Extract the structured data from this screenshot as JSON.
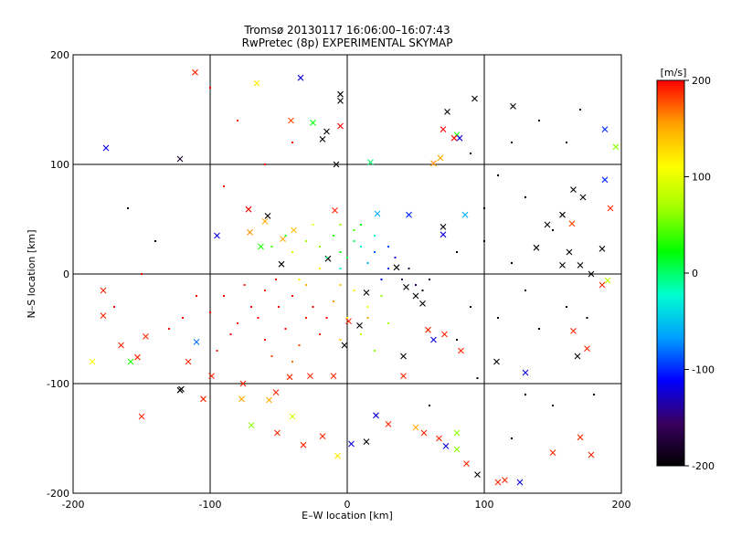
{
  "chart_data": {
    "type": "scatter",
    "title": "Tromsø 20130117 16:06:00–16:07:43",
    "subtitle": "RwPretec (8p) EXPERIMENTAL SKYMAP",
    "xlabel": "E–W location [km]",
    "ylabel": "N–S location [km]",
    "xlim": [
      -200,
      200
    ],
    "ylim": [
      -200,
      200
    ],
    "xticks": [
      -200,
      -100,
      0,
      100,
      200
    ],
    "yticks": [
      -200,
      -100,
      0,
      100,
      200
    ],
    "grid": true,
    "colorbar": {
      "label": "[m/s]",
      "min": -200,
      "max": 200,
      "ticks": [
        200,
        100,
        0,
        -100,
        -200
      ],
      "position": "right",
      "stops": [
        "#000000",
        "#3a0060",
        "#0000ff",
        "#00a0ff",
        "#00ffd0",
        "#00ff00",
        "#a0ff00",
        "#ffff00",
        "#ffa000",
        "#ff0000"
      ]
    },
    "series": [
      {
        "marker": "x",
        "points": [
          [
            -111,
            184,
            190
          ],
          [
            -66,
            174,
            120
          ],
          [
            -34,
            179,
            -120
          ],
          [
            -5,
            164,
            -200
          ],
          [
            -5,
            158,
            -200
          ],
          [
            -41,
            140,
            180
          ],
          [
            -25,
            138,
            20
          ],
          [
            -5,
            135,
            200
          ],
          [
            -15,
            130,
            -200
          ],
          [
            -18,
            123,
            -200
          ],
          [
            -176,
            115,
            -120
          ],
          [
            -122,
            105,
            -180
          ],
          [
            -8,
            100,
            -200
          ],
          [
            17,
            102,
            0
          ],
          [
            68,
            106,
            150
          ],
          [
            70,
            132,
            200
          ],
          [
            80,
            127,
            30
          ],
          [
            82,
            124,
            -120
          ],
          [
            73,
            148,
            -200
          ],
          [
            93,
            160,
            -200
          ],
          [
            121,
            153,
            -200
          ],
          [
            188,
            132,
            -100
          ],
          [
            196,
            116,
            60
          ],
          [
            63,
            101,
            160
          ],
          [
            78,
            124,
            200
          ],
          [
            165,
            77,
            -200
          ],
          [
            172,
            70,
            -200
          ],
          [
            188,
            86,
            -100
          ],
          [
            192,
            60,
            190
          ],
          [
            157,
            54,
            -200
          ],
          [
            146,
            45,
            -200
          ],
          [
            164,
            46,
            180
          ],
          [
            186,
            23,
            -200
          ],
          [
            162,
            20,
            -200
          ],
          [
            157,
            8,
            -200
          ],
          [
            170,
            8,
            -200
          ],
          [
            178,
            0,
            -200
          ],
          [
            190,
            -6,
            80
          ],
          [
            138,
            24,
            -200
          ],
          [
            186,
            -10,
            190
          ],
          [
            -58,
            53,
            -200
          ],
          [
            -72,
            59,
            200
          ],
          [
            -60,
            48,
            150
          ],
          [
            -71,
            38,
            160
          ],
          [
            -39,
            40,
            140
          ],
          [
            -95,
            35,
            -120
          ],
          [
            -47,
            32,
            150
          ],
          [
            -48,
            9,
            -200
          ],
          [
            -14,
            14,
            -200
          ],
          [
            -63,
            25,
            30
          ],
          [
            -9,
            58,
            190
          ],
          [
            22,
            55,
            -60
          ],
          [
            45,
            54,
            -100
          ],
          [
            70,
            43,
            -200
          ],
          [
            86,
            54,
            -60
          ],
          [
            70,
            36,
            -120
          ],
          [
            -150,
            -130,
            190
          ],
          [
            -158,
            -80,
            30
          ],
          [
            -165,
            -65,
            190
          ],
          [
            -186,
            -80,
            110
          ],
          [
            -178,
            -38,
            190
          ],
          [
            -147,
            -57,
            190
          ],
          [
            -153,
            -76,
            190
          ],
          [
            -178,
            -15,
            190
          ],
          [
            -110,
            -62,
            -80
          ],
          [
            -116,
            -80,
            190
          ],
          [
            -121,
            -105,
            -200
          ],
          [
            -122,
            -106,
            -200
          ],
          [
            -105,
            -114,
            190
          ],
          [
            -77,
            -114,
            150
          ],
          [
            -52,
            -108,
            190
          ],
          [
            -57,
            -115,
            150
          ],
          [
            -51,
            -145,
            190
          ],
          [
            -32,
            -156,
            190
          ],
          [
            -18,
            -148,
            190
          ],
          [
            -7,
            -166,
            120
          ],
          [
            -70,
            -138,
            60
          ],
          [
            -40,
            -130,
            90
          ],
          [
            -99,
            -93,
            190
          ],
          [
            -76,
            -100,
            190
          ],
          [
            -42,
            -94,
            190
          ],
          [
            -27,
            -93,
            190
          ],
          [
            -10,
            -93,
            190
          ],
          [
            3,
            -155,
            -120
          ],
          [
            14,
            -153,
            -200
          ],
          [
            21,
            -129,
            -120
          ],
          [
            30,
            -137,
            190
          ],
          [
            50,
            -140,
            150
          ],
          [
            56,
            -145,
            190
          ],
          [
            67,
            -150,
            190
          ],
          [
            72,
            -157,
            -120
          ],
          [
            80,
            -145,
            60
          ],
          [
            80,
            -160,
            60
          ],
          [
            87,
            -173,
            190
          ],
          [
            95,
            -183,
            -200
          ],
          [
            110,
            -190,
            190
          ],
          [
            126,
            -190,
            -120
          ],
          [
            150,
            -163,
            190
          ],
          [
            178,
            -165,
            190
          ],
          [
            170,
            -149,
            190
          ],
          [
            115,
            -188,
            190
          ],
          [
            175,
            -68,
            190
          ],
          [
            168,
            -75,
            -200
          ],
          [
            165,
            -52,
            190
          ],
          [
            130,
            -90,
            -120
          ],
          [
            63,
            -60,
            -120
          ],
          [
            71,
            -55,
            190
          ],
          [
            83,
            -70,
            190
          ],
          [
            109,
            -80,
            -200
          ],
          [
            59,
            -51,
            190
          ],
          [
            50,
            -20,
            -200
          ],
          [
            43,
            -12,
            -200
          ],
          [
            36,
            6,
            -200
          ],
          [
            9,
            -47,
            -200
          ],
          [
            1,
            -43,
            190
          ],
          [
            -2,
            -65,
            -200
          ],
          [
            14,
            -17,
            -200
          ],
          [
            55,
            -27,
            -200
          ],
          [
            41,
            -75,
            -200
          ],
          [
            41,
            -93,
            190
          ]
        ]
      },
      {
        "marker": "dot",
        "points": [
          [
            -52,
            -5,
            200
          ],
          [
            -60,
            -15,
            190
          ],
          [
            -50,
            -30,
            200
          ],
          [
            -40,
            -20,
            200
          ],
          [
            -30,
            -40,
            190
          ],
          [
            -70,
            -30,
            200
          ],
          [
            -80,
            -45,
            200
          ],
          [
            -45,
            -50,
            200
          ],
          [
            -35,
            -65,
            180
          ],
          [
            -20,
            -55,
            190
          ],
          [
            -25,
            -30,
            200
          ],
          [
            -15,
            -40,
            200
          ],
          [
            -60,
            -60,
            200
          ],
          [
            -90,
            -20,
            200
          ],
          [
            -75,
            -10,
            190
          ],
          [
            -100,
            -35,
            200
          ],
          [
            -55,
            -75,
            180
          ],
          [
            -40,
            -80,
            170
          ],
          [
            -10,
            -25,
            160
          ],
          [
            -5,
            -60,
            140
          ],
          [
            -65,
            -40,
            200
          ],
          [
            -85,
            -55,
            200
          ],
          [
            -95,
            -70,
            190
          ],
          [
            -110,
            -20,
            200
          ],
          [
            -120,
            -40,
            200
          ],
          [
            -30,
            -10,
            150
          ],
          [
            0,
            -40,
            120
          ],
          [
            10,
            -55,
            80
          ],
          [
            20,
            -70,
            60
          ],
          [
            30,
            -45,
            70
          ],
          [
            15,
            -30,
            110
          ],
          [
            25,
            -20,
            60
          ],
          [
            -5,
            20,
            20
          ],
          [
            5,
            30,
            0
          ],
          [
            0,
            15,
            10
          ],
          [
            10,
            25,
            -30
          ],
          [
            -10,
            35,
            30
          ],
          [
            -20,
            25,
            60
          ],
          [
            -30,
            30,
            70
          ],
          [
            -40,
            20,
            90
          ],
          [
            -55,
            25,
            40
          ],
          [
            -45,
            35,
            30
          ],
          [
            -25,
            45,
            100
          ],
          [
            -5,
            45,
            60
          ],
          [
            5,
            40,
            40
          ],
          [
            -15,
            15,
            0
          ],
          [
            -5,
            5,
            -20
          ],
          [
            15,
            10,
            -60
          ],
          [
            20,
            20,
            -80
          ],
          [
            30,
            5,
            -100
          ],
          [
            25,
            -5,
            -110
          ],
          [
            40,
            -5,
            -150
          ],
          [
            50,
            -10,
            -160
          ],
          [
            55,
            -15,
            -200
          ],
          [
            60,
            -5,
            -180
          ],
          [
            45,
            5,
            -170
          ],
          [
            35,
            15,
            -120
          ],
          [
            30,
            25,
            -90
          ],
          [
            20,
            35,
            -20
          ],
          [
            10,
            45,
            20
          ],
          [
            -35,
            -5,
            120
          ],
          [
            -20,
            5,
            110
          ],
          [
            -5,
            -10,
            140
          ],
          [
            5,
            -15,
            120
          ],
          [
            15,
            -40,
            150
          ],
          [
            80,
            20,
            -200
          ],
          [
            100,
            30,
            -200
          ],
          [
            120,
            10,
            -200
          ],
          [
            130,
            -15,
            -200
          ],
          [
            110,
            -40,
            -200
          ],
          [
            90,
            -30,
            -200
          ],
          [
            140,
            -50,
            -200
          ],
          [
            160,
            -30,
            -200
          ],
          [
            175,
            -40,
            -200
          ],
          [
            150,
            40,
            -200
          ],
          [
            130,
            70,
            -200
          ],
          [
            110,
            90,
            -200
          ],
          [
            120,
            120,
            -200
          ],
          [
            140,
            140,
            -200
          ],
          [
            160,
            120,
            -200
          ],
          [
            170,
            150,
            -200
          ],
          [
            90,
            110,
            -200
          ],
          [
            100,
            60,
            -200
          ],
          [
            80,
            -60,
            -200
          ],
          [
            95,
            -95,
            -200
          ],
          [
            130,
            -110,
            -200
          ],
          [
            150,
            -120,
            -200
          ],
          [
            180,
            -110,
            -200
          ],
          [
            120,
            -150,
            -200
          ],
          [
            60,
            -120,
            -200
          ],
          [
            -150,
            0,
            200
          ],
          [
            -170,
            -30,
            200
          ],
          [
            -130,
            -50,
            200
          ],
          [
            -140,
            30,
            -200
          ],
          [
            -160,
            60,
            -200
          ],
          [
            -90,
            80,
            200
          ],
          [
            -60,
            100,
            200
          ],
          [
            -40,
            120,
            200
          ],
          [
            -80,
            140,
            200
          ],
          [
            -100,
            170,
            200
          ]
        ]
      }
    ]
  }
}
